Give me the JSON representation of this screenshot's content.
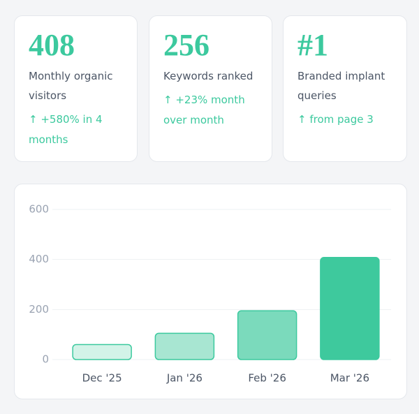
{
  "cards": [
    {
      "value": "408",
      "label": "Monthly organic visitors",
      "change": "↑ +580% in 4 months"
    },
    {
      "value": "256",
      "label": "Keywords ranked",
      "change": "↑ +23% month over month"
    },
    {
      "value": "#1",
      "label": "Branded implant queries",
      "change": "↑ from page 3"
    }
  ],
  "chart_data": {
    "type": "bar",
    "categories": [
      "Dec '25",
      "Jan '26",
      "Feb '26",
      "Mar '26"
    ],
    "values": [
      60,
      105,
      195,
      408
    ],
    "colors": [
      "#d3f3e8",
      "#a8e6d2",
      "#7bdabc",
      "#3ec99d"
    ],
    "border_color": "#3cc99e",
    "ylim": [
      0,
      600
    ],
    "yticks": [
      0,
      200,
      400,
      600
    ],
    "grid": true
  }
}
